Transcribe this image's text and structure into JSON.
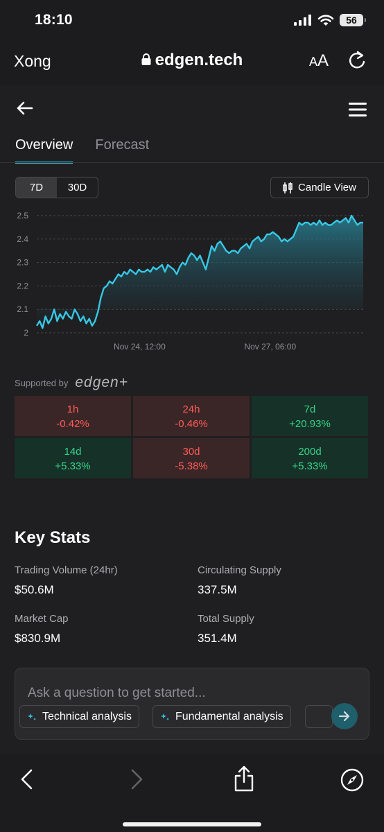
{
  "status_bar": {
    "time": "18:10",
    "battery": "56"
  },
  "browser": {
    "back_label": "Xong",
    "url": "edgen.tech",
    "text_size_label_small": "A",
    "text_size_label_large": "A"
  },
  "tabs": [
    {
      "label": "Overview",
      "active": true
    },
    {
      "label": "Forecast",
      "active": false
    }
  ],
  "range_toggle": [
    {
      "label": "7D",
      "active": true
    },
    {
      "label": "30D",
      "active": false
    }
  ],
  "candle_view_label": "Candle View",
  "chart_data": {
    "type": "area",
    "y_ticks": [
      "2.5",
      "2.4",
      "2.3",
      "2.2",
      "2.1",
      "2"
    ],
    "ylim": [
      2.0,
      2.5
    ],
    "x_ticks": [
      {
        "label": "Nov 24, 12:00",
        "x": 0.4
      },
      {
        "label": "Nov 27, 06:00",
        "x": 0.8
      }
    ],
    "grid": "horizontal dashed",
    "line_color": "#37c8e6",
    "series": [
      {
        "values": [
          2.03,
          2.05,
          2.02,
          2.07,
          2.04,
          2.06,
          2.1,
          2.05,
          2.08,
          2.06,
          2.09,
          2.07,
          2.06,
          2.1,
          2.08,
          2.05,
          2.07,
          2.04,
          2.06,
          2.03,
          2.05,
          2.09,
          2.15,
          2.19,
          2.2,
          2.22,
          2.21,
          2.23,
          2.25,
          2.24,
          2.26,
          2.25,
          2.27,
          2.26,
          2.25,
          2.27,
          2.26,
          2.26,
          2.27,
          2.26,
          2.28,
          2.27,
          2.28,
          2.29,
          2.26,
          2.29,
          2.28,
          2.27,
          2.25,
          2.28,
          2.3,
          2.29,
          2.32,
          2.34,
          2.33,
          2.31,
          2.33,
          2.3,
          2.27,
          2.32,
          2.37,
          2.35,
          2.38,
          2.39,
          2.37,
          2.35,
          2.34,
          2.35,
          2.35,
          2.34,
          2.36,
          2.37,
          2.38,
          2.36,
          2.39,
          2.4,
          2.41,
          2.39,
          2.4,
          2.42,
          2.42,
          2.43,
          2.42,
          2.41,
          2.39,
          2.4,
          2.39,
          2.4,
          2.41,
          2.44,
          2.47,
          2.46,
          2.47,
          2.47,
          2.46,
          2.47,
          2.46,
          2.48,
          2.46,
          2.47,
          2.46,
          2.46,
          2.47,
          2.48,
          2.47,
          2.48,
          2.49,
          2.47,
          2.5,
          2.48,
          2.46,
          2.47,
          2.47
        ]
      }
    ]
  },
  "supported_by": {
    "label": "Supported by",
    "brand": "edgen+"
  },
  "performance": [
    {
      "period": "1h",
      "change": "-0.42%",
      "direction": "neg"
    },
    {
      "period": "24h",
      "change": "-0.46%",
      "direction": "neg"
    },
    {
      "period": "7d",
      "change": "+20.93%",
      "direction": "pos"
    },
    {
      "period": "14d",
      "change": "+5.33%",
      "direction": "pos"
    },
    {
      "period": "30d",
      "change": "-5.38%",
      "direction": "neg"
    },
    {
      "period": "200d",
      "change": "+5.33%",
      "direction": "pos"
    }
  ],
  "key_stats": {
    "title": "Key Stats",
    "items": [
      {
        "label": "Trading Volume (24hr)",
        "value": "$50.6M"
      },
      {
        "label": "Circulating Supply",
        "value": "337.5M"
      },
      {
        "label": "Market Cap",
        "value": "$830.9M"
      },
      {
        "label": "Total Supply",
        "value": "351.4M"
      }
    ]
  },
  "ask": {
    "placeholder": "Ask a question to get started...",
    "chips": [
      "Technical analysis",
      "Fundamental analysis"
    ]
  },
  "colors": {
    "accent": "#37c8e6",
    "negative": "#ff5b57",
    "positive": "#38d28a"
  }
}
